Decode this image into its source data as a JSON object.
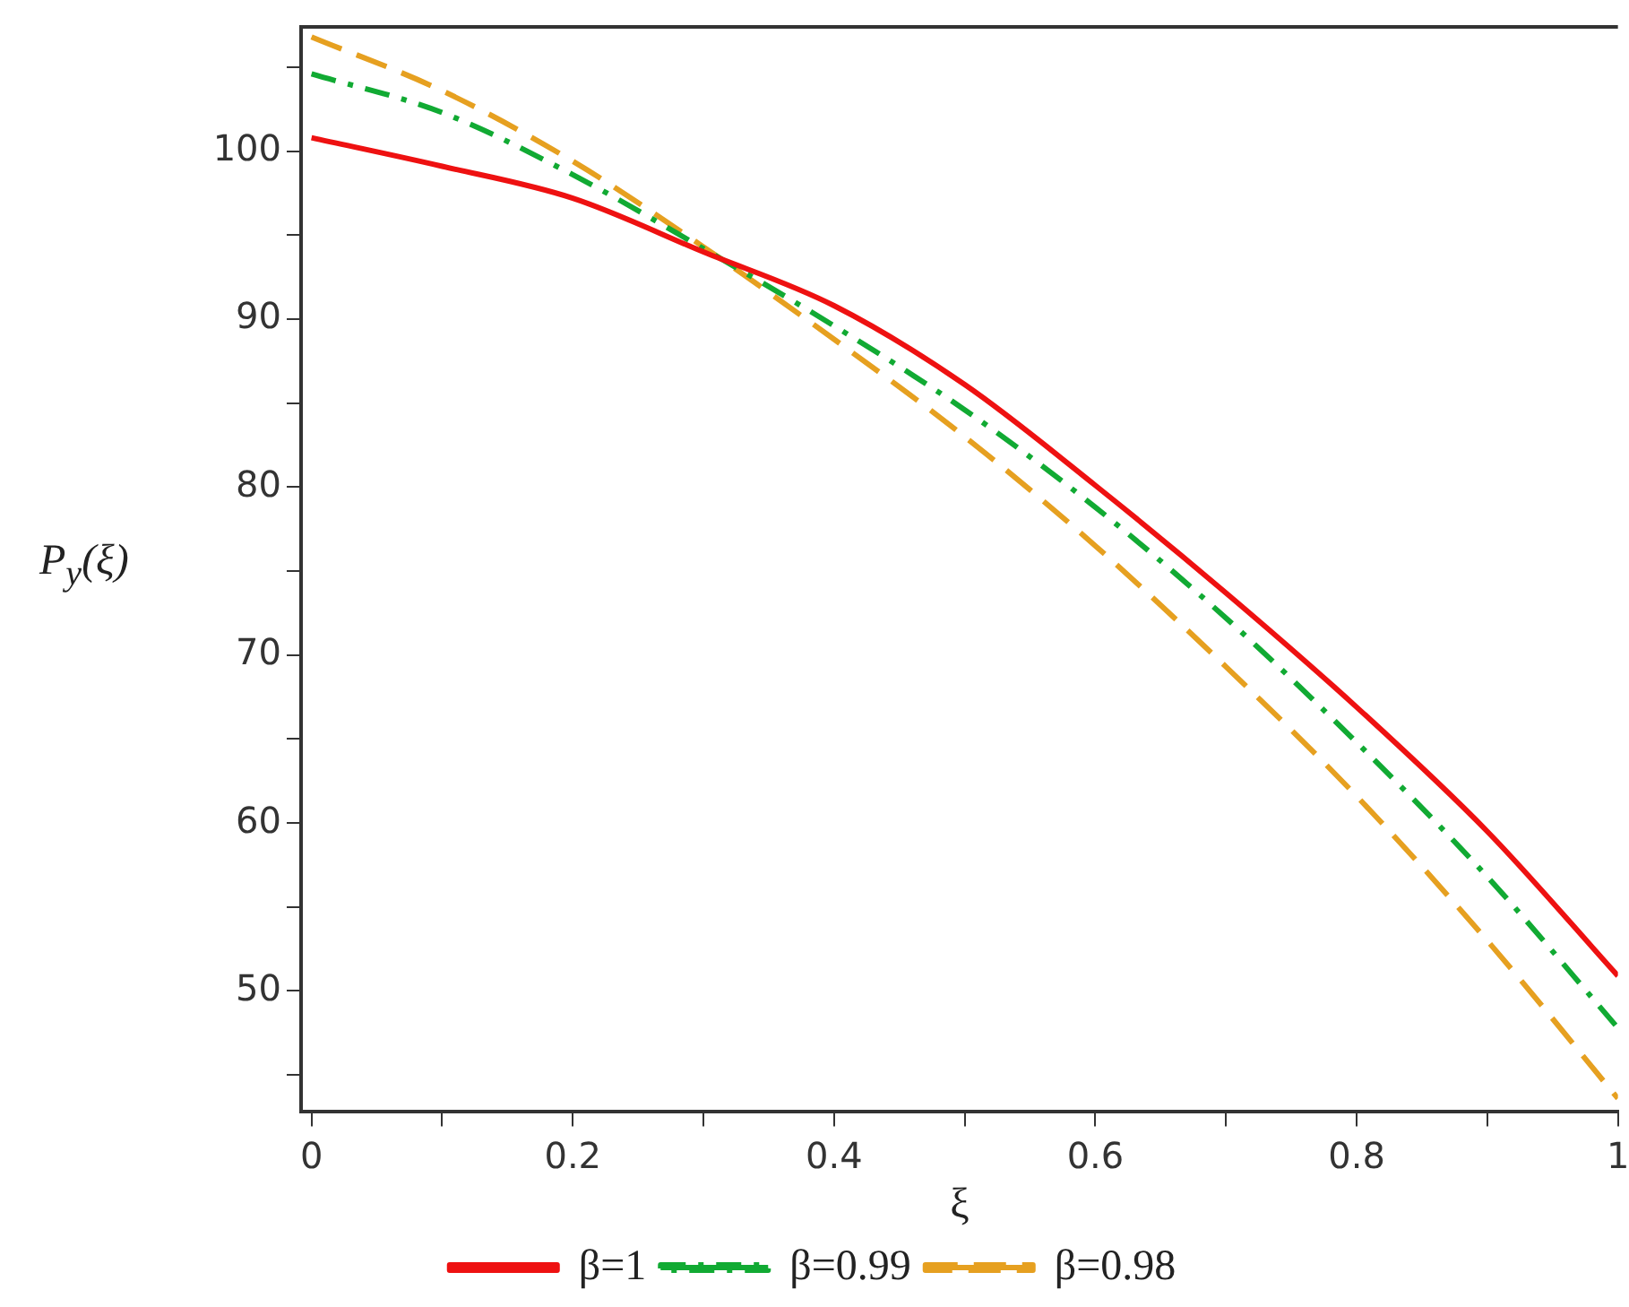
{
  "chart_data": {
    "type": "line",
    "xlabel": "ξ",
    "ylabel": "P$_{y}$(ξ)",
    "x": [
      0,
      0.1,
      0.2,
      0.3,
      0.4,
      0.5,
      0.6,
      0.7,
      0.8,
      0.9,
      1.0
    ],
    "series": [
      {
        "name": "β=1",
        "color": "#ee1111",
        "line_style": "solid",
        "values": [
          100.8,
          99.1,
          97.2,
          94.0,
          90.8,
          86.1,
          80.1,
          73.7,
          66.9,
          59.5,
          50.9
        ]
      },
      {
        "name": "β=0.99",
        "color": "#11aa33",
        "line_style": "dashdot",
        "values": [
          104.6,
          102.3,
          98.6,
          94.2,
          89.6,
          84.6,
          78.8,
          72.2,
          64.8,
          56.8,
          47.8
        ]
      },
      {
        "name": "β=0.98",
        "color": "#e6a020",
        "line_style": "dashed",
        "values": [
          106.8,
          103.6,
          99.4,
          94.3,
          88.8,
          83.0,
          76.5,
          69.3,
          61.6,
          53.0,
          43.6
        ]
      }
    ],
    "xlim": [
      -0.008,
      1.0
    ],
    "ylim": [
      42.8,
      107.4
    ],
    "xticks": [
      0,
      {
        "value": 0.1,
        "label": null
      },
      0.2,
      {
        "value": 0.3,
        "label": null
      },
      0.4,
      {
        "value": 0.5,
        "label": null
      },
      0.6,
      {
        "value": 0.7,
        "label": null
      },
      0.8,
      {
        "value": 0.9,
        "label": null
      },
      1
    ],
    "yticks": [
      {
        "value": 45,
        "label": null
      },
      50,
      {
        "value": 55,
        "label": null
      },
      60,
      {
        "value": 65,
        "label": null
      },
      70,
      {
        "value": 75,
        "label": null
      },
      80,
      {
        "value": 85,
        "label": null
      },
      90,
      {
        "value": 95,
        "label": null
      },
      100,
      {
        "value": 105,
        "label": null
      }
    ],
    "grid": false,
    "legend": "bottom",
    "marker": "none"
  }
}
